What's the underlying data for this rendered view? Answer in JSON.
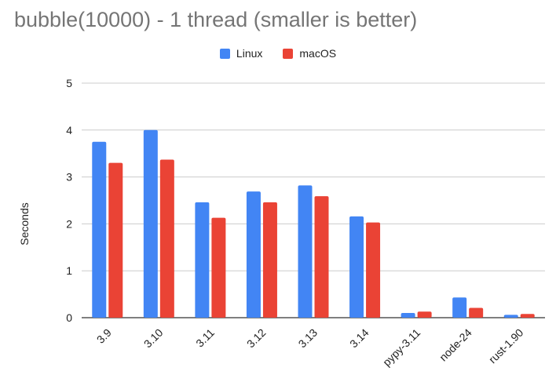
{
  "chart_data": {
    "type": "bar",
    "title": "bubble(10000) - 1 thread (smaller is better)",
    "xlabel": "",
    "ylabel": "Seconds",
    "ylim": [
      0,
      5
    ],
    "yticks": [
      "0",
      "1",
      "2",
      "3",
      "4",
      "5"
    ],
    "grid": true,
    "legend_position": "top",
    "categories": [
      "3.9",
      "3.10",
      "3.11",
      "3.12",
      "3.13",
      "3.14",
      "pypy-3.11",
      "node-24",
      "rust-1.90"
    ],
    "series": [
      {
        "name": "Linux",
        "color": "#4285f4",
        "values": [
          3.75,
          4.0,
          2.46,
          2.69,
          2.82,
          2.16,
          0.1,
          0.43,
          0.06
        ]
      },
      {
        "name": "macOS",
        "color": "#ea4335",
        "values": [
          3.3,
          3.37,
          2.13,
          2.46,
          2.59,
          2.03,
          0.13,
          0.21,
          0.08
        ]
      }
    ]
  }
}
